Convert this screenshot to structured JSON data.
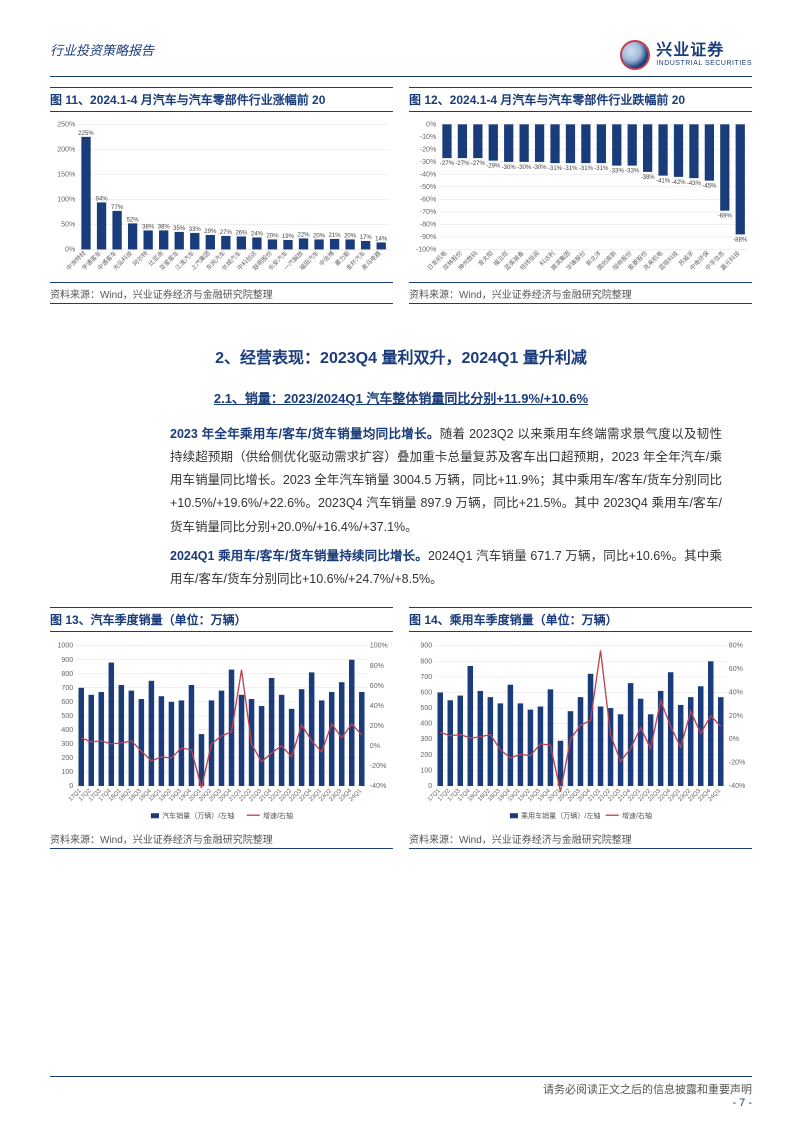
{
  "header": {
    "report_type": "行业投资策略报告"
  },
  "logo": {
    "cn": "兴业证券",
    "en": "INDUSTRIAL SECURITIES"
  },
  "chart11": {
    "title": "图 11、2024.1-4 月汽车与汽车零部件行业涨幅前 20",
    "type": "bar",
    "bar_color": "#1a3c7a",
    "grid_color": "#e5e5e5",
    "y_ticks": [
      "0%",
      "50%",
      "100%",
      "150%",
      "200%",
      "250%"
    ],
    "ylim": [
      0,
      250
    ],
    "categories": [
      "中洲特材",
      "宇通客车",
      "中通客车",
      "光弘科技",
      "阿尔特",
      "比亚迪",
      "亚星客车",
      "江淮汽车",
      "上汽集团",
      "东风汽车",
      "长城汽车",
      "中科创达",
      "联明股份",
      "长安汽车",
      "一汽解放",
      "福田汽车",
      "中信博",
      "塞力斯",
      "金杯汽车",
      "奥马电器"
    ],
    "values": [
      225,
      94,
      77,
      52,
      38,
      38,
      35,
      33,
      29,
      27,
      26,
      24,
      20,
      19,
      22,
      20,
      21,
      20,
      17,
      14
    ],
    "label_rotate": -45
  },
  "chart12": {
    "title": "图 12、2024.1-4 月汽车与汽车零部件行业跌幅前 20",
    "type": "bar",
    "bar_color": "#1a3c7a",
    "grid_color": "#e5e5e5",
    "y_ticks": [
      "-100%",
      "-90%",
      "-80%",
      "-70%",
      "-60%",
      "-50%",
      "-40%",
      "-30%",
      "-20%",
      "-10%",
      "0%"
    ],
    "ylim": [
      -100,
      0
    ],
    "categories": [
      "日发机电",
      "双林股份",
      "神州数码",
      "金太阳",
      "福立旺",
      "蓝英装备",
      "经纬恒润",
      "科达利",
      "旗滨集团",
      "华锋股份",
      "新北洋",
      "国创高新",
      "恒帅股份",
      "索菱股份",
      "克来机电",
      "蓝晓科技",
      "苏威孚",
      "中电环保",
      "中孚信息",
      "嘉元科技"
    ],
    "values": [
      -27,
      -27,
      -27,
      -29,
      -30,
      -30,
      -30,
      -31,
      -31,
      -31,
      -31,
      -33,
      -33,
      -38,
      -41,
      -42,
      -43,
      -45,
      -69,
      -88
    ],
    "label_rotate": -45
  },
  "source_text": "资料来源：Wind，兴业证券经济与金融研究院整理",
  "section2": {
    "heading": "2、经营表现：2023Q4 量利双升，2024Q1 量升利减",
    "sub": "2.1、销量：2023/2024Q1 汽车整体销量同比分别+11.9%/+10.6%",
    "para1_lead": "2023 年全年乘用车/客车/货车销量均同比增长。",
    "para1_body": "随着 2023Q2 以来乘用车终端需求景气度以及韧性持续超预期（供给侧优化驱动需求扩容）叠加重卡总量复苏及客车出口超预期，2023 年全年汽车/乘用车销量同比增长。2023 全年汽车销量 3004.5 万辆，同比+11.9%；其中乘用车/客车/货车分别同比+10.5%/+19.6%/+22.6%。2023Q4 汽车销量 897.9 万辆，同比+21.5%。其中 2023Q4 乘用车/客车/货车销量同比分别+20.0%/+16.4%/+37.1%。",
    "para2_lead": "2024Q1 乘用车/客车/货车销量持续同比增长。",
    "para2_body": "2024Q1 汽车销量 671.7 万辆，同比+10.6%。其中乘用车/客车/货车分别同比+10.6%/+24.7%/+8.5%。"
  },
  "chart13": {
    "title": "图 13、汽车季度销量（单位：万辆）",
    "type": "bar+line",
    "bar_color": "#1a3c7a",
    "line_color": "#c04050",
    "legend_bar": "汽车销量（万辆）/左轴",
    "legend_line": "增速/右轴",
    "y_left_ticks": [
      "0",
      "100",
      "200",
      "300",
      "400",
      "500",
      "600",
      "700",
      "800",
      "900",
      "1000"
    ],
    "y_right_ticks": [
      "-40%",
      "-20%",
      "0%",
      "20%",
      "40%",
      "60%",
      "80%",
      "100%"
    ],
    "categories": [
      "17Q1",
      "17Q2",
      "17Q3",
      "17Q4",
      "18Q1",
      "18Q2",
      "18Q3",
      "18Q4",
      "19Q1",
      "19Q2",
      "19Q3",
      "19Q4",
      "20Q1",
      "20Q2",
      "20Q3",
      "20Q4",
      "21Q1",
      "21Q2",
      "21Q3",
      "21Q4",
      "22Q1",
      "22Q2",
      "22Q3",
      "22Q4",
      "23Q1",
      "23Q2",
      "23Q3",
      "23Q4",
      "24Q1"
    ],
    "bar_values": [
      700,
      650,
      670,
      880,
      720,
      680,
      620,
      750,
      640,
      600,
      610,
      720,
      370,
      610,
      680,
      830,
      650,
      620,
      570,
      770,
      650,
      550,
      690,
      810,
      610,
      670,
      740,
      900,
      670
    ],
    "line_values": [
      8,
      4,
      5,
      2,
      3,
      5,
      -5,
      -15,
      -11,
      -12,
      -2,
      -4,
      -42,
      2,
      10,
      14,
      76,
      2,
      -16,
      -7,
      0,
      -11,
      21,
      5,
      -6,
      22,
      8,
      22,
      11
    ]
  },
  "chart14": {
    "title": "图 14、乘用车季度销量（单位：万辆）",
    "type": "bar+line",
    "bar_color": "#1a3c7a",
    "line_color": "#c04050",
    "legend_bar": "乘用车销量（万辆）/左轴",
    "legend_line": "增速/右轴",
    "y_left_ticks": [
      "0",
      "100",
      "200",
      "300",
      "400",
      "500",
      "600",
      "700",
      "800",
      "900"
    ],
    "y_right_ticks": [
      "-40%",
      "-20%",
      "0%",
      "20%",
      "40%",
      "60%",
      "80%"
    ],
    "categories": [
      "17Q1",
      "17Q2",
      "17Q3",
      "17Q4",
      "18Q1",
      "18Q2",
      "18Q3",
      "18Q4",
      "19Q1",
      "19Q2",
      "19Q3",
      "19Q4",
      "20Q1",
      "20Q2",
      "20Q3",
      "20Q4",
      "21Q1",
      "21Q2",
      "21Q3",
      "21Q4",
      "22Q1",
      "22Q2",
      "22Q3",
      "22Q4",
      "23Q1",
      "23Q2",
      "23Q3",
      "23Q4",
      "24Q1"
    ],
    "bar_values": [
      600,
      550,
      580,
      770,
      610,
      570,
      530,
      650,
      530,
      490,
      510,
      620,
      290,
      480,
      570,
      720,
      510,
      500,
      460,
      660,
      560,
      460,
      610,
      730,
      520,
      570,
      640,
      800,
      570
    ],
    "line_values": [
      6,
      3,
      4,
      1,
      2,
      4,
      -9,
      -16,
      -13,
      -14,
      -4,
      -5,
      -45,
      0,
      12,
      16,
      76,
      4,
      -19,
      -8,
      10,
      -8,
      33,
      11,
      -7,
      24,
      5,
      20,
      11
    ]
  },
  "footer": {
    "disclaimer": "请务必阅读正文之后的信息披露和重要声明",
    "page": "- 7 -"
  }
}
